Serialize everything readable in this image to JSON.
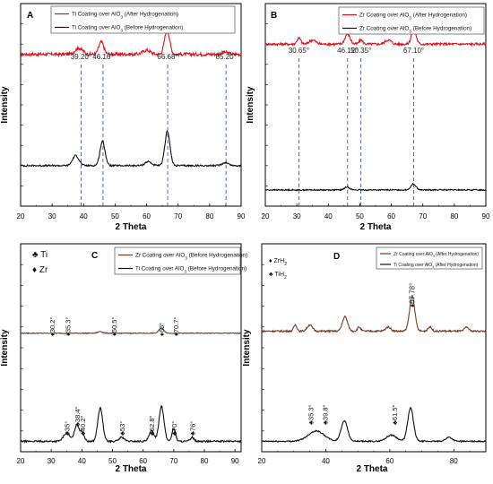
{
  "panels": [
    {
      "letter": "A",
      "ylabel": "Intensity",
      "xlabel": "2 Theta",
      "legend": [
        {
          "label": "Ti Coating over AlO$_3$ (After Hydrogenation)",
          "text": "Ti Coating over AlO",
          "sub": "3",
          "tail": " (After Hydrogenation)",
          "color": "#e0101a"
        },
        {
          "label": "Ti Coating over AlO3 (Before Hydrogenation)",
          "text": "Ti Coating over AlO",
          "sub": "3",
          "tail": " (Before Hydrogenation)",
          "color": "#111111"
        }
      ],
      "peak_labels": [
        "39.20°",
        "46.16°",
        "66.68°",
        "85.20°"
      ],
      "symbol_labels": [],
      "side_legend": []
    },
    {
      "letter": "B",
      "ylabel": "Intensity",
      "xlabel": "2 Theta",
      "legend": [
        {
          "label": "Zr Coating over AlO3 (After Hydrogenation)",
          "text": "Zr Coating over AlO",
          "sub": "3",
          "tail": " (After Hydrogenation)",
          "color": "#e0101a"
        },
        {
          "label": "Zr Coating over AlO3 (Before Hydrogenation)",
          "text": "Zr Coating over AlO",
          "sub": "3",
          "tail": " (Before Hydrogenation)",
          "color": "#111111"
        }
      ],
      "peak_labels": [
        "30.65°",
        "46.12°",
        "50.35°",
        "67.10°"
      ],
      "symbol_labels": [],
      "side_legend": []
    },
    {
      "letter": "C",
      "ylabel": "Intensity",
      "xlabel": "2 Theta",
      "legend": [
        {
          "label": "Zr Coating over AlO3 (Before Hydrogenation)",
          "text": "Zr Coating over AlO",
          "sub": "3",
          "tail": " (Before Hydrogenation)",
          "color": "#7a3b1a"
        },
        {
          "label": "Ti Coating over AlO3 (Before Hydrogenation)",
          "text": "Ti Coating over AlO",
          "sub": "3",
          "tail": " (Before Hydrogenation)",
          "color": "#111111"
        }
      ],
      "peak_labels": [],
      "symbol_labels": [
        "30.2°",
        "35.3°",
        "50.5°",
        "66°",
        "70.7°",
        "35°",
        "38.4°",
        "40.2°",
        "53°",
        "62.8°",
        "70°",
        "76°"
      ],
      "side_legend": [
        {
          "symbol": "♣",
          "text": "Ti"
        },
        {
          "symbol": "♦",
          "text": "Zr"
        }
      ]
    },
    {
      "letter": "D",
      "ylabel": "Intensity",
      "xlabel": "2 Theta",
      "legend": [
        {
          "label": "Zr Coating over AlO3 (After Hydrogenation)",
          "text": "Zr Coating over AlO",
          "sub": "3",
          "tail": " (After Hydrogenation)",
          "color": "#7a3b1a"
        },
        {
          "label": "Ti Coating over AlO3 (After Hydrogenation)",
          "text": "Ti Coating over AlO",
          "sub": "3",
          "tail": " (After Hydrogenation)",
          "color": "#111111"
        }
      ],
      "peak_labels": [
        "67.78°"
      ],
      "symbol_labels": [
        "35.3°",
        "39.8°",
        "61.5°"
      ],
      "side_legend": [
        {
          "symbol": "♦",
          "text": "ZrH",
          "sub": "2"
        },
        {
          "symbol": "♣",
          "text": "TiH",
          "sub": "2"
        }
      ]
    }
  ],
  "chart_data": [
    {
      "type": "line",
      "panel": "A",
      "xlabel": "2 Theta",
      "ylabel": "Intensity",
      "xlim": [
        20,
        90
      ],
      "xticks": [
        20,
        30,
        40,
        50,
        60,
        70,
        80,
        90
      ],
      "ylim": [
        0,
        1
      ],
      "grid": false,
      "legend_position": "top-left",
      "vlines": [
        39.2,
        46.16,
        66.68,
        85.2
      ],
      "series": [
        {
          "name": "Ti Coating over AlO3 (After Hydrogenation)",
          "color": "#e0101a",
          "baseline": 0.75,
          "noise": 0.008,
          "peaks": [
            {
              "x": 38.5,
              "h": 0.03,
              "w": 1.2
            },
            {
              "x": 45.6,
              "h": 0.06,
              "w": 0.8
            },
            {
              "x": 60.0,
              "h": 0.02,
              "w": 1.2
            },
            {
              "x": 66.5,
              "h": 0.12,
              "w": 0.8
            },
            {
              "x": 84.8,
              "h": 0.01,
              "w": 1.0
            }
          ]
        },
        {
          "name": "Ti Coating over AlO3 (Before Hydrogenation)",
          "color": "#111111",
          "baseline": 0.2,
          "noise": 0.004,
          "peaks": [
            {
              "x": 37.5,
              "h": 0.05,
              "w": 1.0
            },
            {
              "x": 46.0,
              "h": 0.12,
              "w": 0.8
            },
            {
              "x": 60.5,
              "h": 0.02,
              "w": 1.0
            },
            {
              "x": 66.6,
              "h": 0.17,
              "w": 0.8
            },
            {
              "x": 85.0,
              "h": 0.015,
              "w": 1.0
            }
          ]
        }
      ]
    },
    {
      "type": "line",
      "panel": "B",
      "xlabel": "2 Theta",
      "ylabel": "Intensity",
      "xlim": [
        20,
        90
      ],
      "xticks": [
        20,
        30,
        40,
        50,
        60,
        70,
        80,
        90
      ],
      "ylim": [
        0,
        1
      ],
      "grid": false,
      "legend_position": "top-right",
      "vlines": [
        30.65,
        46.12,
        50.35,
        67.1
      ],
      "series": [
        {
          "name": "Zr Coating over AlO3 (After Hydrogenation)",
          "color": "#e0101a",
          "baseline": 0.8,
          "noise": 0.006,
          "peaks": [
            {
              "x": 30.65,
              "h": 0.03,
              "w": 0.6
            },
            {
              "x": 35.0,
              "h": 0.02,
              "w": 1.0
            },
            {
              "x": 46.1,
              "h": 0.05,
              "w": 0.8
            },
            {
              "x": 50.35,
              "h": 0.02,
              "w": 0.6
            },
            {
              "x": 59.0,
              "h": 0.02,
              "w": 1.0
            },
            {
              "x": 67.1,
              "h": 0.08,
              "w": 0.7
            }
          ]
        },
        {
          "name": "Zr Coating over AlO3 (Before Hydrogenation)",
          "color": "#111111",
          "baseline": 0.08,
          "noise": 0.003,
          "peaks": [
            {
              "x": 46.0,
              "h": 0.015,
              "w": 0.8
            },
            {
              "x": 67.0,
              "h": 0.03,
              "w": 0.8
            }
          ]
        }
      ]
    },
    {
      "type": "line",
      "panel": "C",
      "xlabel": "2 Theta",
      "ylabel": "Intensity",
      "xlim": [
        20,
        92
      ],
      "xticks": [
        20,
        30,
        40,
        50,
        60,
        70,
        80,
        90
      ],
      "ylim": [
        0,
        1
      ],
      "grid": false,
      "legend_position": "top-right",
      "series": [
        {
          "name": "Zr Coating over AlO3 (Before Hydrogenation)",
          "color": "#7a3b1a",
          "baseline": 0.57,
          "noise": 0.002,
          "peaks": [
            {
              "x": 46.0,
              "h": 0.008,
              "w": 0.8
            },
            {
              "x": 66.0,
              "h": 0.025,
              "w": 0.8
            }
          ]
        },
        {
          "name": "Ti Coating over AlO3 (Before Hydrogenation)",
          "color": "#111111",
          "baseline": 0.05,
          "noise": 0.004,
          "peaks": [
            {
              "x": 35.0,
              "h": 0.04,
              "w": 1.0
            },
            {
              "x": 38.4,
              "h": 0.08,
              "w": 0.8
            },
            {
              "x": 40.2,
              "h": 0.04,
              "w": 0.6
            },
            {
              "x": 46.0,
              "h": 0.16,
              "w": 0.8
            },
            {
              "x": 53.0,
              "h": 0.02,
              "w": 0.8
            },
            {
              "x": 62.8,
              "h": 0.05,
              "w": 0.8
            },
            {
              "x": 66.0,
              "h": 0.17,
              "w": 0.8
            },
            {
              "x": 70.0,
              "h": 0.06,
              "w": 0.6
            },
            {
              "x": 76.0,
              "h": 0.02,
              "w": 0.6
            }
          ]
        }
      ]
    },
    {
      "type": "line",
      "panel": "D",
      "xlabel": "2 Theta",
      "ylabel": "Intensity",
      "xlim": [
        20,
        90
      ],
      "xticks": [
        20,
        40,
        60,
        80
      ],
      "ylim": [
        0,
        1
      ],
      "grid": false,
      "legend_position": "top-right",
      "series": [
        {
          "name": "Zr Coating over AlO3 (After Hydrogenation)",
          "color": "#7a3b1a",
          "baseline": 0.58,
          "noise": 0.004,
          "peaks": [
            {
              "x": 30.5,
              "h": 0.03,
              "w": 0.5
            },
            {
              "x": 35.0,
              "h": 0.03,
              "w": 0.8
            },
            {
              "x": 46.0,
              "h": 0.07,
              "w": 0.8
            },
            {
              "x": 50.4,
              "h": 0.02,
              "w": 0.5
            },
            {
              "x": 59.5,
              "h": 0.02,
              "w": 0.8
            },
            {
              "x": 67.0,
              "h": 0.17,
              "w": 0.8
            },
            {
              "x": 72.5,
              "h": 0.02,
              "w": 0.6
            },
            {
              "x": 84.0,
              "h": 0.02,
              "w": 0.6
            }
          ]
        },
        {
          "name": "Ti Coating over AlO3 (After Hydrogenation)",
          "color": "#111111",
          "baseline": 0.05,
          "noise": 0.003,
          "peaks": [
            {
              "x": 37.0,
              "h": 0.05,
              "w": 2.5
            },
            {
              "x": 45.8,
              "h": 0.1,
              "w": 1.0
            },
            {
              "x": 60.5,
              "h": 0.03,
              "w": 1.6
            },
            {
              "x": 66.5,
              "h": 0.16,
              "w": 0.9
            },
            {
              "x": 78.5,
              "h": 0.02,
              "w": 1.0
            }
          ]
        }
      ]
    }
  ]
}
